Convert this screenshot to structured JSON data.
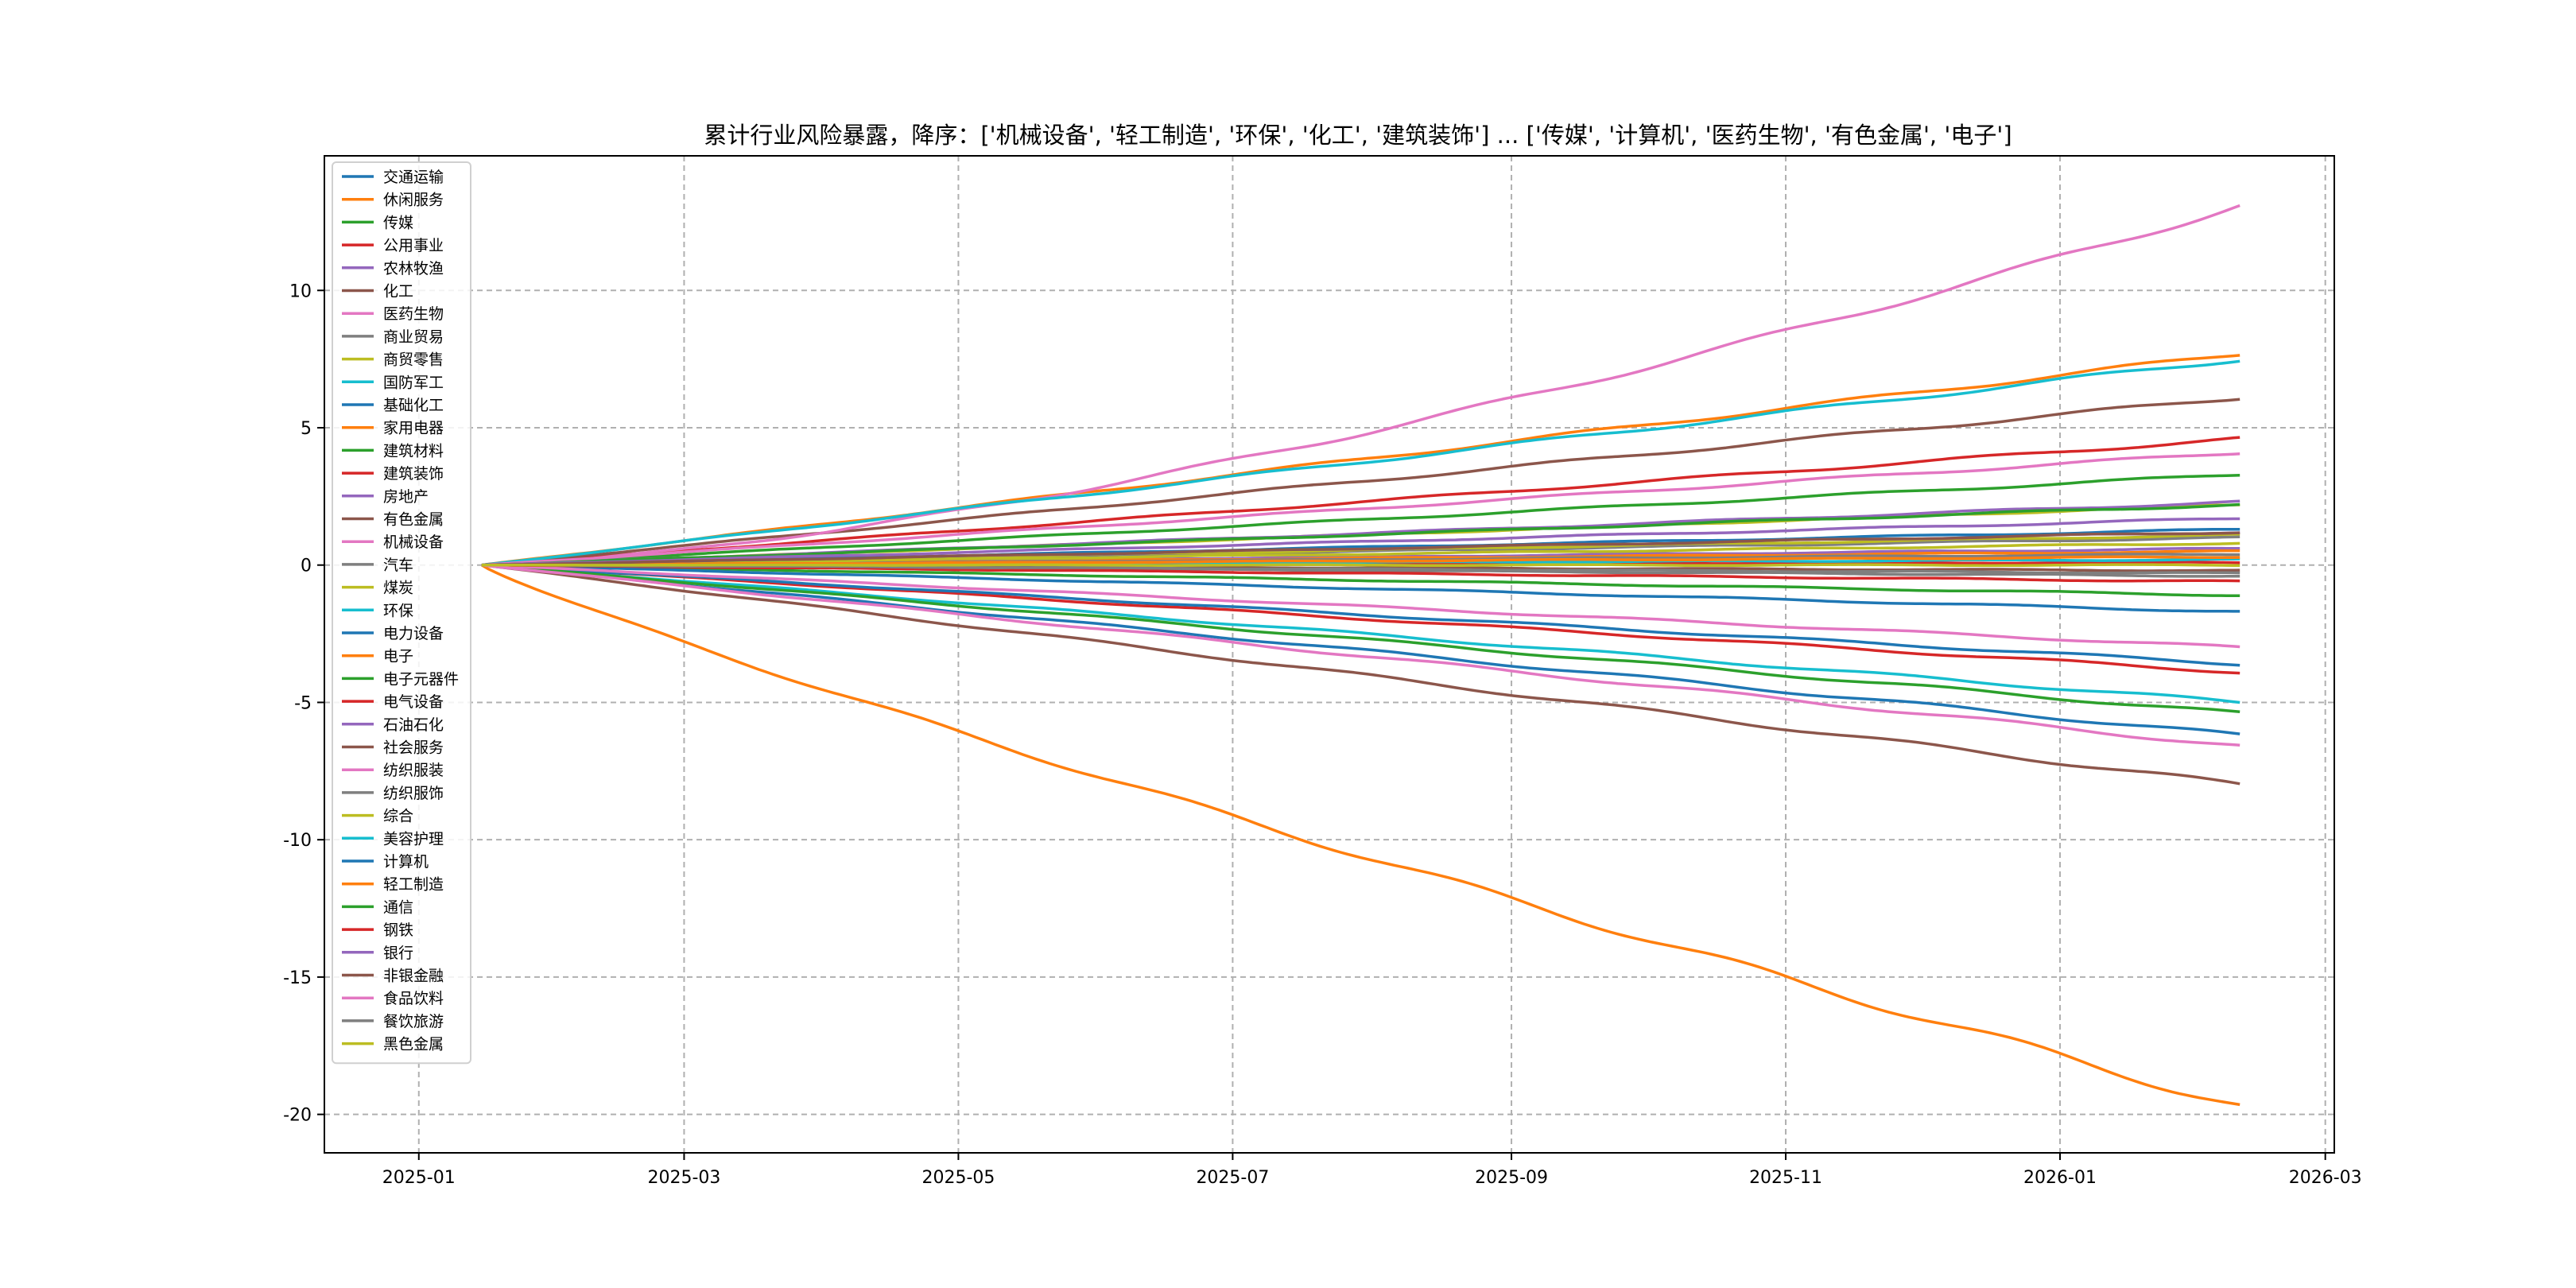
{
  "chart_data": {
    "type": "line",
    "title": "累计行业风险暴露，降序：['机械设备', '轻工制造', '环保', '化工', '建筑装饰'] ... ['传媒', '计算机', '医药生物', '有色金属', '电子']",
    "xlabel": "",
    "ylabel": "",
    "x_start": "2025-01-15",
    "x_end": "2026-02-10",
    "xlim": [
      "2024-12-11",
      "2026-03-03"
    ],
    "ylim": [
      -21.4,
      14.9
    ],
    "x_ticks": [
      "2025-01",
      "2025-03",
      "2025-05",
      "2025-07",
      "2025-09",
      "2025-11",
      "2026-01",
      "2026-03"
    ],
    "y_ticks": [
      10,
      5,
      0,
      -5,
      -10,
      -15,
      -20
    ],
    "grid": true,
    "legend_position": "upper-left",
    "series": [
      {
        "name": "交通运输",
        "color": "#1f77b4",
        "end": -6.2
      },
      {
        "name": "休闲服务",
        "color": "#ff7f0e",
        "end": 7.7
      },
      {
        "name": "传媒",
        "color": "#2ca02c",
        "end": -1.1
      },
      {
        "name": "公用事业",
        "color": "#d62728",
        "end": 4.6
      },
      {
        "name": "农林牧渔",
        "color": "#9467bd",
        "end": 0.6
      },
      {
        "name": "化工",
        "color": "#8c564b",
        "end": 6.1
      },
      {
        "name": "医药生物",
        "color": "#e377c2",
        "end": 13.1,
        "curve": 1.45
      },
      {
        "name": "商业贸易",
        "color": "#7f7f7f",
        "end": 1.0
      },
      {
        "name": "商贸零售",
        "color": "#bcbd22",
        "end": 2.2
      },
      {
        "name": "国防军工",
        "color": "#17becf",
        "end": 7.5
      },
      {
        "name": "基础化工",
        "color": "#1f77b4",
        "end": -1.7
      },
      {
        "name": "家用电器",
        "color": "#ff7f0e",
        "end": 0.5
      },
      {
        "name": "建筑材料",
        "color": "#2ca02c",
        "end": 3.3
      },
      {
        "name": "建筑装饰",
        "color": "#d62728",
        "end": -3.9
      },
      {
        "name": "房地产",
        "color": "#9467bd",
        "end": 2.3
      },
      {
        "name": "有色金属",
        "color": "#8c564b",
        "end": -8.0
      },
      {
        "name": "机械设备",
        "color": "#e377c2",
        "end": 4.1
      },
      {
        "name": "汽车",
        "color": "#7f7f7f",
        "end": -0.4
      },
      {
        "name": "煤炭",
        "color": "#bcbd22",
        "end": 1.1
      },
      {
        "name": "环保",
        "color": "#17becf",
        "end": -5.0
      },
      {
        "name": "电力设备",
        "color": "#1f77b4",
        "end": -3.6
      },
      {
        "name": "电子",
        "color": "#ff7f0e",
        "end": -19.7,
        "curve": 0.9
      },
      {
        "name": "电子元器件",
        "color": "#2ca02c",
        "end": -5.4
      },
      {
        "name": "电气设备",
        "color": "#d62728",
        "end": 0.1
      },
      {
        "name": "石油石化",
        "color": "#9467bd",
        "end": 1.2
      },
      {
        "name": "社会服务",
        "color": "#8c564b",
        "end": -0.2
      },
      {
        "name": "纺织服装",
        "color": "#e377c2",
        "end": -3.0
      },
      {
        "name": "纺织服饰",
        "color": "#7f7f7f",
        "end": 0.4
      },
      {
        "name": "综合",
        "color": "#bcbd22",
        "end": 0.8
      },
      {
        "name": "美容护理",
        "color": "#17becf",
        "end": 0.2
      },
      {
        "name": "计算机",
        "color": "#1f77b4",
        "end": 1.3
      },
      {
        "name": "轻工制造",
        "color": "#ff7f0e",
        "end": 0.3
      },
      {
        "name": "通信",
        "color": "#2ca02c",
        "end": 2.2
      },
      {
        "name": "钢铁",
        "color": "#d62728",
        "end": -0.6
      },
      {
        "name": "银行",
        "color": "#9467bd",
        "end": 1.7
      },
      {
        "name": "非银金融",
        "color": "#8c564b",
        "end": 1.2
      },
      {
        "name": "食品饮料",
        "color": "#e377c2",
        "end": -6.6
      },
      {
        "name": "餐饮旅游",
        "color": "#7f7f7f",
        "end": -0.3
      },
      {
        "name": "黑色金属",
        "color": "#bcbd22",
        "end": 0.0
      }
    ]
  }
}
